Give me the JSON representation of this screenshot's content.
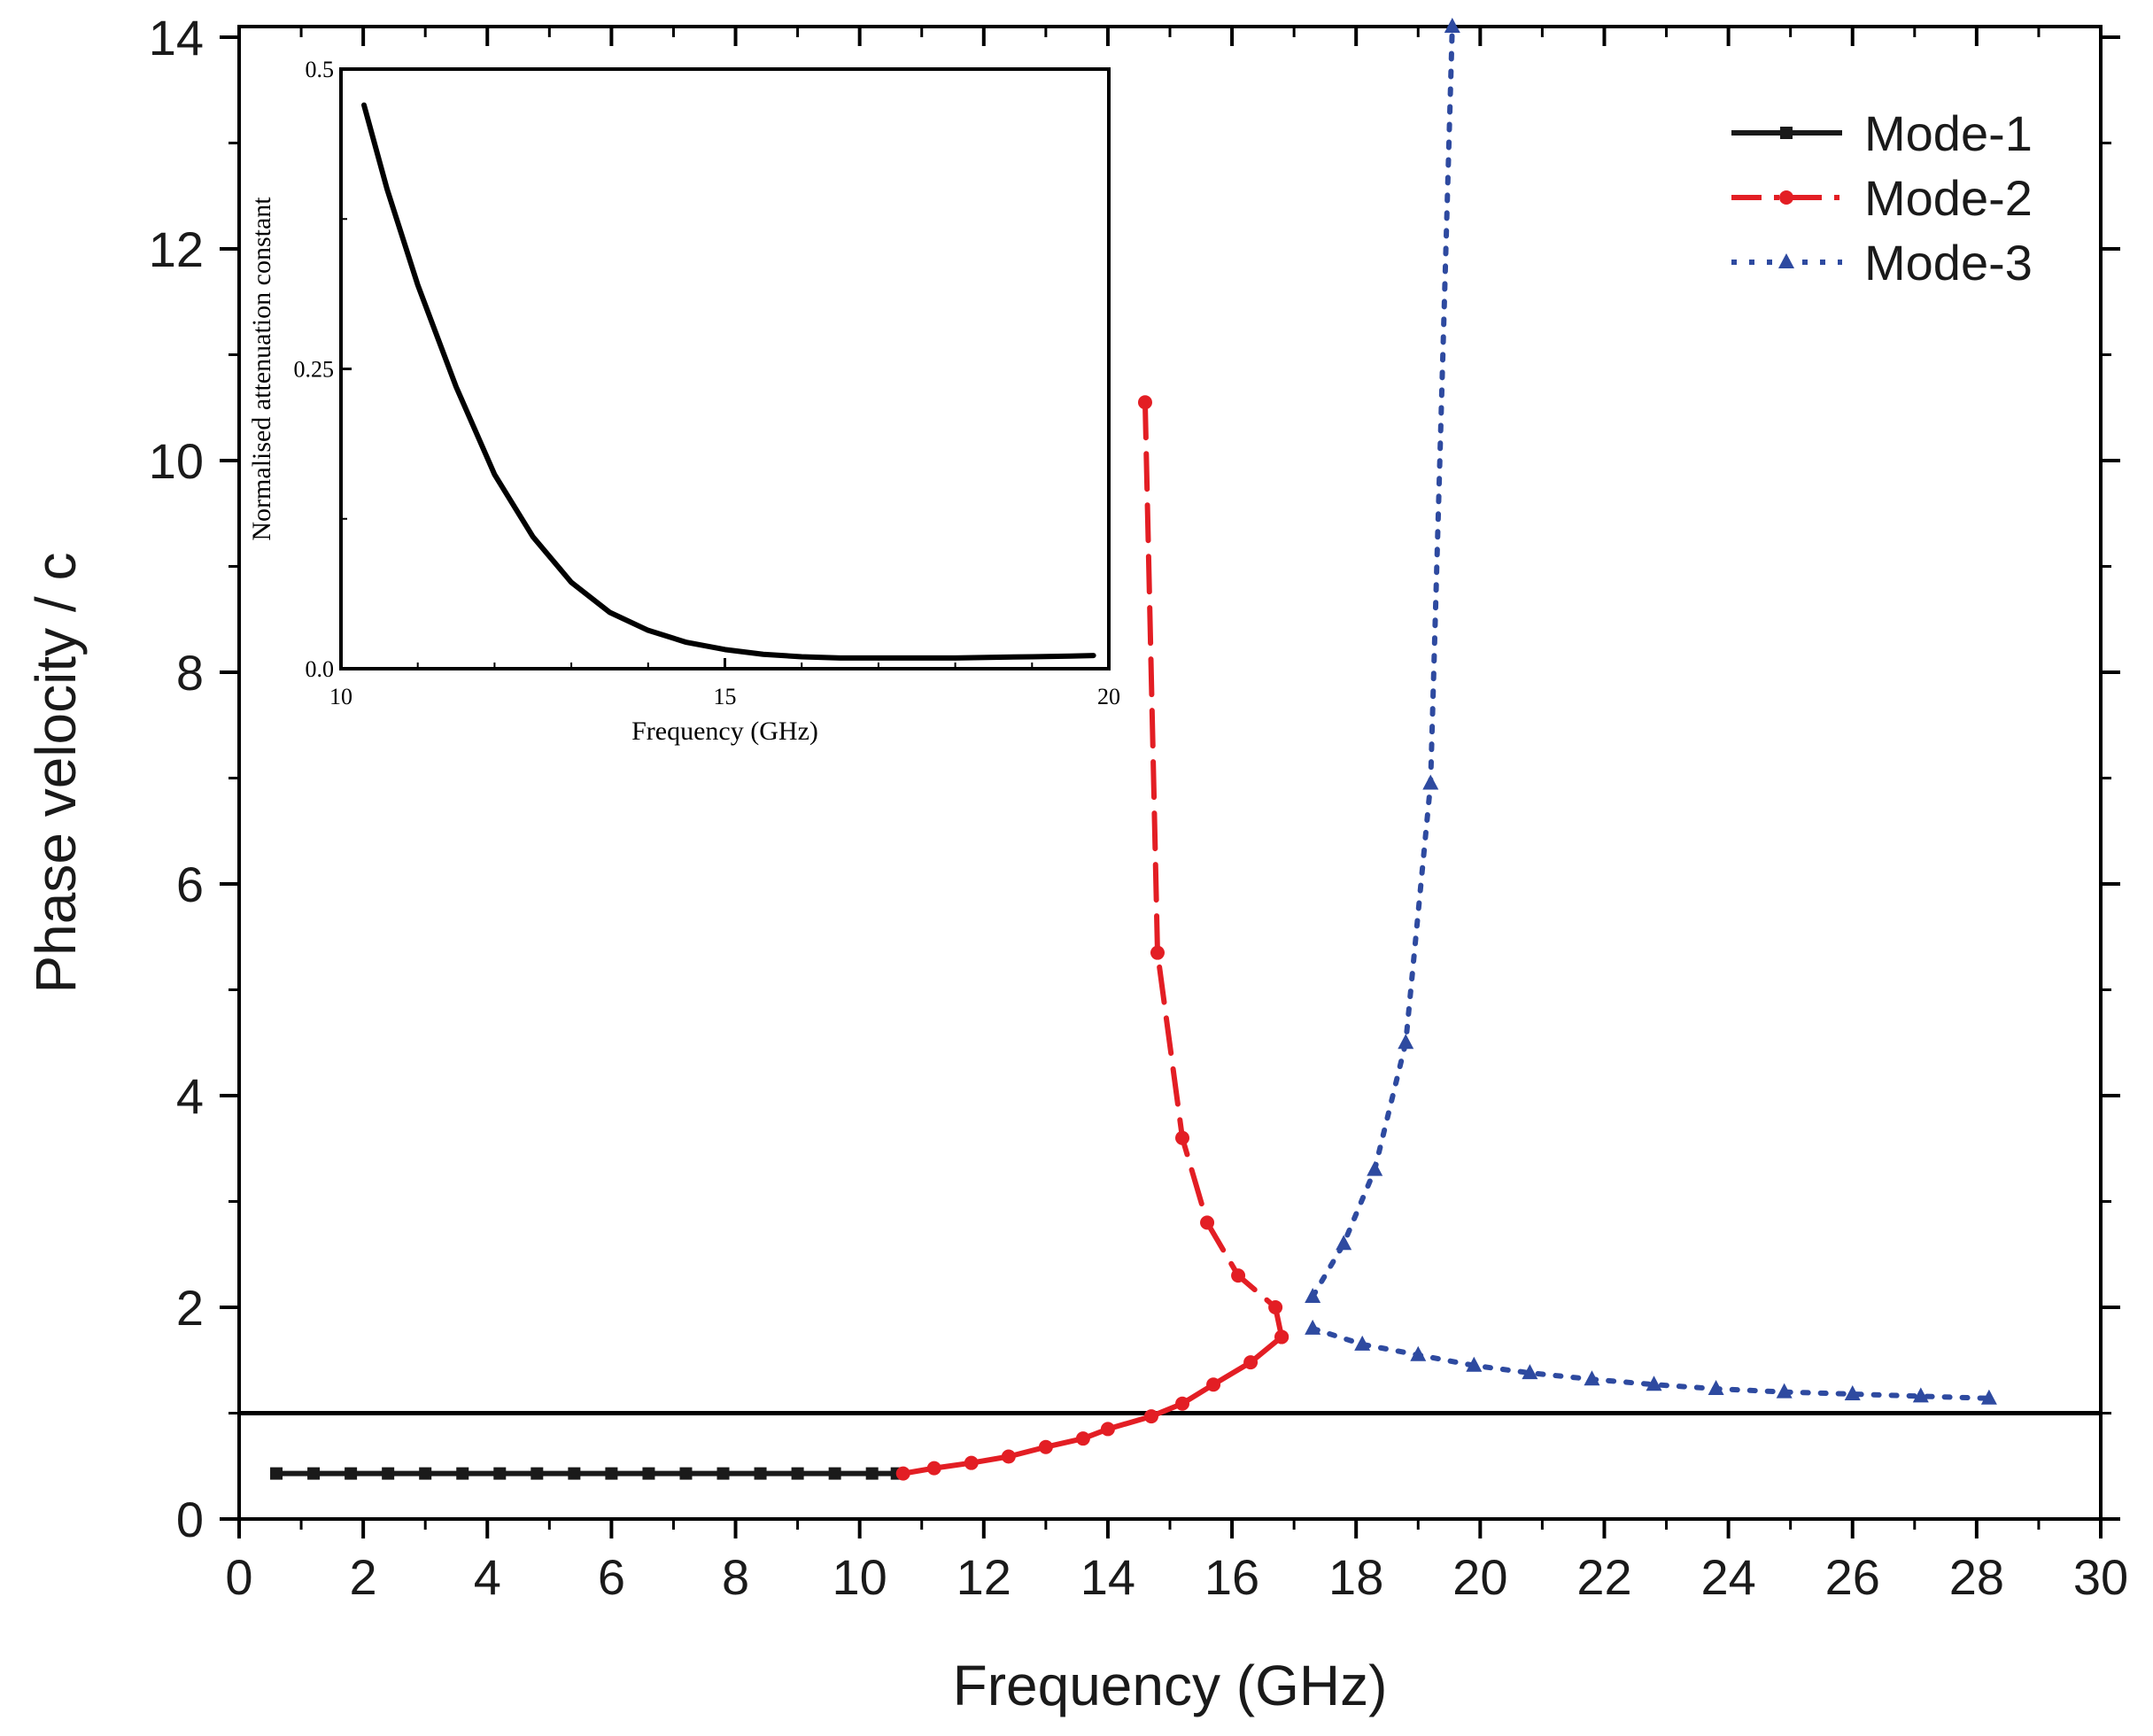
{
  "chart_data": [
    {
      "id": "main",
      "type": "line",
      "title": "",
      "xlabel": "Frequency (GHz)",
      "ylabel": "Phase velocity / c",
      "xlim": [
        0,
        30
      ],
      "ylim": [
        0,
        14.1
      ],
      "xticks": [
        0,
        2,
        4,
        6,
        8,
        10,
        12,
        14,
        16,
        18,
        20,
        22,
        24,
        26,
        28,
        30
      ],
      "yticks": [
        0,
        2,
        4,
        6,
        8,
        10,
        12,
        14
      ],
      "grid": false,
      "legend_position": "top-right",
      "reference_line": {
        "y": 1.0,
        "color": "#000000"
      },
      "series": [
        {
          "name": "Mode-1",
          "color": "#1a1a1a",
          "style": "solid",
          "marker": "square",
          "x": [
            0.6,
            1.2,
            1.8,
            2.4,
            3.0,
            3.6,
            4.2,
            4.8,
            5.4,
            6.0,
            6.6,
            7.2,
            7.8,
            8.4,
            9.0,
            9.6,
            10.2,
            10.6
          ],
          "y": [
            0.43,
            0.43,
            0.43,
            0.43,
            0.43,
            0.43,
            0.43,
            0.43,
            0.43,
            0.43,
            0.43,
            0.43,
            0.43,
            0.43,
            0.43,
            0.43,
            0.43,
            0.43
          ]
        },
        {
          "name": "Mode-2",
          "color": "#e31e24",
          "style": "dashdot",
          "marker": "circle",
          "segments": [
            {
              "style": "dash",
              "x": [
                14.6,
                14.8,
                15.2,
                15.6,
                16.1,
                16.7,
                16.8
              ],
              "y": [
                10.55,
                5.35,
                3.6,
                2.8,
                2.3,
                2.0,
                1.72
              ]
            },
            {
              "style": "solid",
              "x": [
                16.8,
                16.3,
                15.7,
                15.2,
                14.7,
                14.0,
                13.6,
                13.0,
                12.4,
                11.8,
                11.2,
                10.7
              ],
              "y": [
                1.72,
                1.48,
                1.27,
                1.09,
                0.97,
                0.85,
                0.76,
                0.68,
                0.59,
                0.53,
                0.48,
                0.43
              ]
            }
          ]
        },
        {
          "name": "Mode-3",
          "color": "#2e4aa0",
          "style": "dot",
          "marker": "triangle",
          "segments": [
            {
              "style": "dot",
              "x": [
                17.3,
                17.8,
                18.3,
                18.8,
                19.2,
                19.55
              ],
              "y": [
                2.1,
                2.6,
                3.3,
                4.5,
                6.95,
                14.1
              ]
            },
            {
              "style": "dot",
              "x": [
                17.3,
                18.1,
                19.0,
                19.9,
                20.8,
                21.8,
                22.8,
                23.8,
                24.9,
                26.0,
                27.1,
                28.2
              ],
              "y": [
                1.8,
                1.65,
                1.55,
                1.45,
                1.38,
                1.32,
                1.27,
                1.23,
                1.2,
                1.18,
                1.16,
                1.14
              ]
            }
          ]
        }
      ]
    },
    {
      "id": "inset",
      "type": "line",
      "title": "",
      "xlabel": "Frequency (GHz)",
      "ylabel": "Normalised attenuation constant",
      "xlim": [
        10,
        20
      ],
      "ylim": [
        0,
        0.5
      ],
      "xticks": [
        10,
        15,
        20
      ],
      "xtick_labels": [
        "10",
        "15",
        "20"
      ],
      "yticks": [
        0,
        0.25,
        0.5
      ],
      "ytick_labels": [
        "0.0",
        "0.25",
        "0.5"
      ],
      "grid": false,
      "series": [
        {
          "name": "attenuation",
          "color": "#000000",
          "style": "solid",
          "x": [
            10.3,
            10.6,
            11.0,
            11.5,
            12.0,
            12.5,
            13.0,
            13.5,
            14.0,
            14.5,
            15.0,
            15.5,
            16.0,
            16.5,
            17.0,
            17.5,
            18.0,
            18.5,
            19.0,
            19.5,
            19.8
          ],
          "y": [
            0.47,
            0.4,
            0.32,
            0.235,
            0.162,
            0.11,
            0.072,
            0.047,
            0.032,
            0.022,
            0.016,
            0.012,
            0.01,
            0.009,
            0.009,
            0.009,
            0.009,
            0.0095,
            0.01,
            0.0105,
            0.011
          ]
        }
      ]
    }
  ]
}
